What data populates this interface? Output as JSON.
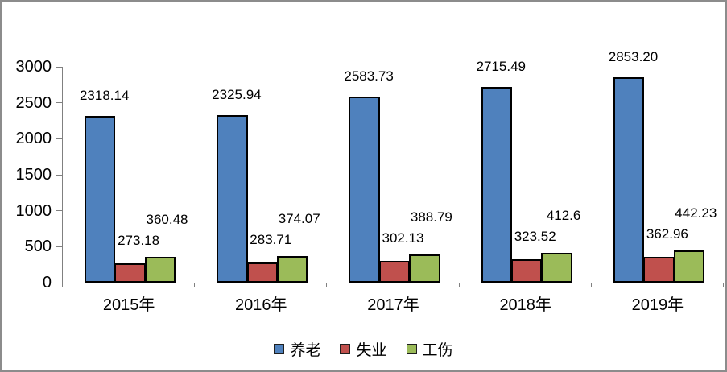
{
  "frame": {
    "background_color": "#FFFFFF",
    "border_color": "#8C8C8C"
  },
  "style": {
    "axis_color": "#808080",
    "bar_border_color": "#000000",
    "text_color": "#000000"
  },
  "chart_data": {
    "type": "bar",
    "title": "",
    "xlabel": "",
    "ylabel": "",
    "grid": false,
    "legend_position": "bottom",
    "categories": [
      "2015年",
      "2016年",
      "2017年",
      "2018年",
      "2019年"
    ],
    "series": [
      {
        "name": "养老",
        "color": "#4F81BD",
        "values": [
          2318.14,
          2325.94,
          2583.73,
          2715.49,
          2853.2
        ],
        "labels": [
          "2318.14",
          "2325.94",
          "2583.73",
          "2715.49",
          "2853.20"
        ]
      },
      {
        "name": "失业",
        "color": "#C0504D",
        "values": [
          273.18,
          283.71,
          302.13,
          323.52,
          362.96
        ],
        "labels": [
          "273.18",
          "283.71",
          "302.13",
          "323.52",
          "362.96"
        ]
      },
      {
        "name": "工伤",
        "color": "#9BBB59",
        "values": [
          360.48,
          374.07,
          388.79,
          412.6,
          442.23
        ],
        "labels": [
          "360.48",
          "374.07",
          "388.79",
          "412.6",
          "442.23"
        ]
      }
    ],
    "y_axis": {
      "min": 0,
      "max": 3000,
      "step": 500,
      "tick_labels": [
        "0",
        "500",
        "1000",
        "1500",
        "2000",
        "2500",
        "3000"
      ]
    }
  }
}
